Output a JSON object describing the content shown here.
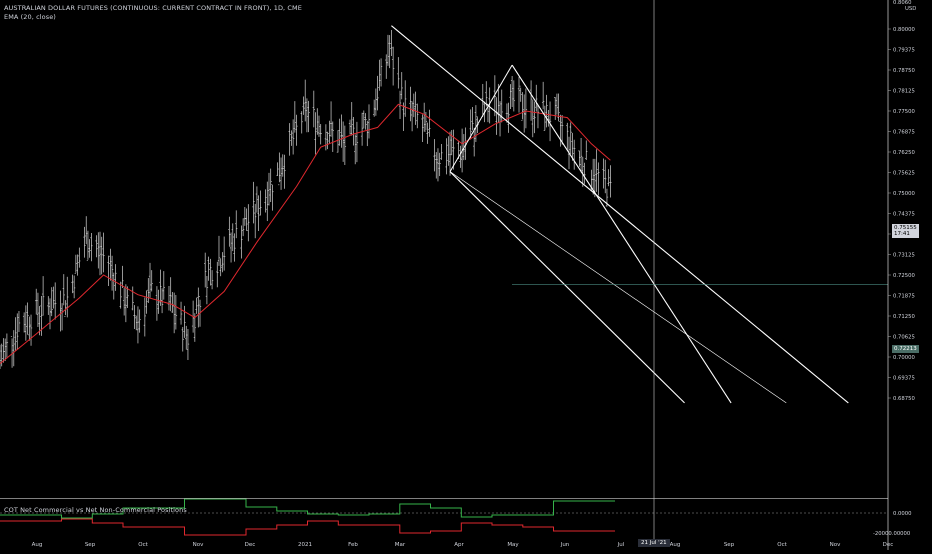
{
  "header": {
    "title": "AUSTRALIAN DOLLAR FUTURES (CONTINUOUS: CURRENT CONTRACT IN FRONT), 1D, CME",
    "indicator": "EMA (20, close)",
    "cot_title": "COT Net Commercial vs Net Non-Commercial Positions",
    "currency": "USD"
  },
  "price_scale": {
    "ticks": [
      "0.80000",
      "0.79375",
      "0.78750",
      "0.78125",
      "0.77500",
      "0.76875",
      "0.76250",
      "0.75625",
      "0.75000",
      "0.74375",
      "0.73750",
      "0.73125",
      "0.72500",
      "0.71875",
      "0.71250",
      "0.70625",
      "0.70000",
      "0.69375",
      "0.68750"
    ],
    "top_partial": "0.8060",
    "last_price": "0.75155",
    "countdown": "17:41",
    "level_price": "0.72213"
  },
  "cot_scale": {
    "ticks": [
      "0.0000",
      "-20000.00000"
    ]
  },
  "time_axis": {
    "labels": [
      "Aug",
      "Sep",
      "Oct",
      "Nov",
      "Dec",
      "2021",
      "Feb",
      "Mar",
      "Apr",
      "May",
      "Jun",
      "Jul",
      "Aug",
      "Sep",
      "Oct",
      "Nov",
      "Dec"
    ],
    "cursor_date": "21 Jul '21"
  },
  "chart_data": {
    "type": "bar",
    "title": "AUSTRALIAN DOLLAR FUTURES (CONTINUOUS: CURRENT CONTRACT IN FRONT), 1D, CME",
    "series_name": "EMA (20, close)",
    "y_unit": "USD",
    "ylim": [
      0.684,
      0.806
    ],
    "x_range": [
      "2020-07-13",
      "2021-12-10"
    ],
    "grid": false,
    "ohlc_close_path": [
      [
        "2020-07-13",
        0.699
      ],
      [
        "2020-07-24",
        0.71
      ],
      [
        "2020-08-10",
        0.716
      ],
      [
        "2020-08-21",
        0.718
      ],
      [
        "2020-09-01",
        0.736
      ],
      [
        "2020-09-14",
        0.729
      ],
      [
        "2020-09-25",
        0.716
      ],
      [
        "2020-10-01",
        0.711
      ],
      [
        "2020-10-09",
        0.72
      ],
      [
        "2020-10-20",
        0.716
      ],
      [
        "2020-10-30",
        0.706
      ],
      [
        "2020-11-10",
        0.725
      ],
      [
        "2020-11-24",
        0.735
      ],
      [
        "2020-12-09",
        0.745
      ],
      [
        "2020-12-22",
        0.757
      ],
      [
        "2021-01-06",
        0.775
      ],
      [
        "2021-01-15",
        0.771
      ],
      [
        "2021-01-29",
        0.765
      ],
      [
        "2021-02-12",
        0.772
      ],
      [
        "2021-02-24",
        0.794
      ],
      [
        "2021-03-04",
        0.777
      ],
      [
        "2021-03-12",
        0.773
      ],
      [
        "2021-03-24",
        0.761
      ],
      [
        "2021-04-07",
        0.763
      ],
      [
        "2021-04-21",
        0.776
      ],
      [
        "2021-05-06",
        0.778
      ],
      [
        "2021-05-18",
        0.776
      ],
      [
        "2021-05-31",
        0.773
      ],
      [
        "2021-06-14",
        0.761
      ],
      [
        "2021-06-25",
        0.755
      ],
      [
        "2021-07-02",
        0.751
      ]
    ],
    "ema_20": [
      [
        "2020-07-13",
        0.698
      ],
      [
        "2020-08-03",
        0.707
      ],
      [
        "2020-08-28",
        0.718
      ],
      [
        "2020-09-11",
        0.725
      ],
      [
        "2020-10-01",
        0.719
      ],
      [
        "2020-10-21",
        0.716
      ],
      [
        "2020-11-03",
        0.712
      ],
      [
        "2020-11-20",
        0.72
      ],
      [
        "2020-12-09",
        0.735
      ],
      [
        "2021-01-01",
        0.752
      ],
      [
        "2021-01-15",
        0.764
      ],
      [
        "2021-02-03",
        0.768
      ],
      [
        "2021-02-17",
        0.77
      ],
      [
        "2021-03-01",
        0.777
      ],
      [
        "2021-03-16",
        0.774
      ],
      [
        "2021-04-07",
        0.765
      ],
      [
        "2021-04-26",
        0.771
      ],
      [
        "2021-05-14",
        0.775
      ],
      [
        "2021-06-07",
        0.773
      ],
      [
        "2021-06-21",
        0.765
      ],
      [
        "2021-07-02",
        0.76
      ]
    ],
    "channel_upper": [
      [
        "2021-02-25",
        0.801
      ],
      [
        "2021-11-17",
        0.686
      ]
    ],
    "channel_middle": [
      [
        "2021-03-31",
        0.7565
      ],
      [
        "2021-10-12",
        0.686
      ]
    ],
    "channel_lower": [
      [
        "2021-05-06",
        0.789
      ],
      [
        "2021-09-10",
        0.686
      ]
    ],
    "channel_lower_start": [
      [
        "2021-03-31",
        0.7565
      ],
      [
        "2021-08-14",
        0.686
      ]
    ],
    "channel_top_bound": [
      [
        "2021-03-31",
        0.7565
      ],
      [
        "2021-05-06",
        0.789
      ]
    ],
    "horizontal_level": 0.72213,
    "cot": {
      "net_commercial": [
        -2000,
        -2000,
        -5000,
        -1000,
        5000,
        5000,
        14000,
        14000,
        6000,
        2000,
        -1000,
        -2000,
        -1000,
        9000,
        5000,
        -4000,
        -2000,
        -2000,
        12000,
        12000
      ],
      "net_non_commercial": [
        -8000,
        -8000,
        -6000,
        -10000,
        -14000,
        -14000,
        -22000,
        -22000,
        -16000,
        -12000,
        -8000,
        -12000,
        -12000,
        -20000,
        -18000,
        -10000,
        -12000,
        -14000,
        -18000,
        -18000
      ]
    }
  }
}
